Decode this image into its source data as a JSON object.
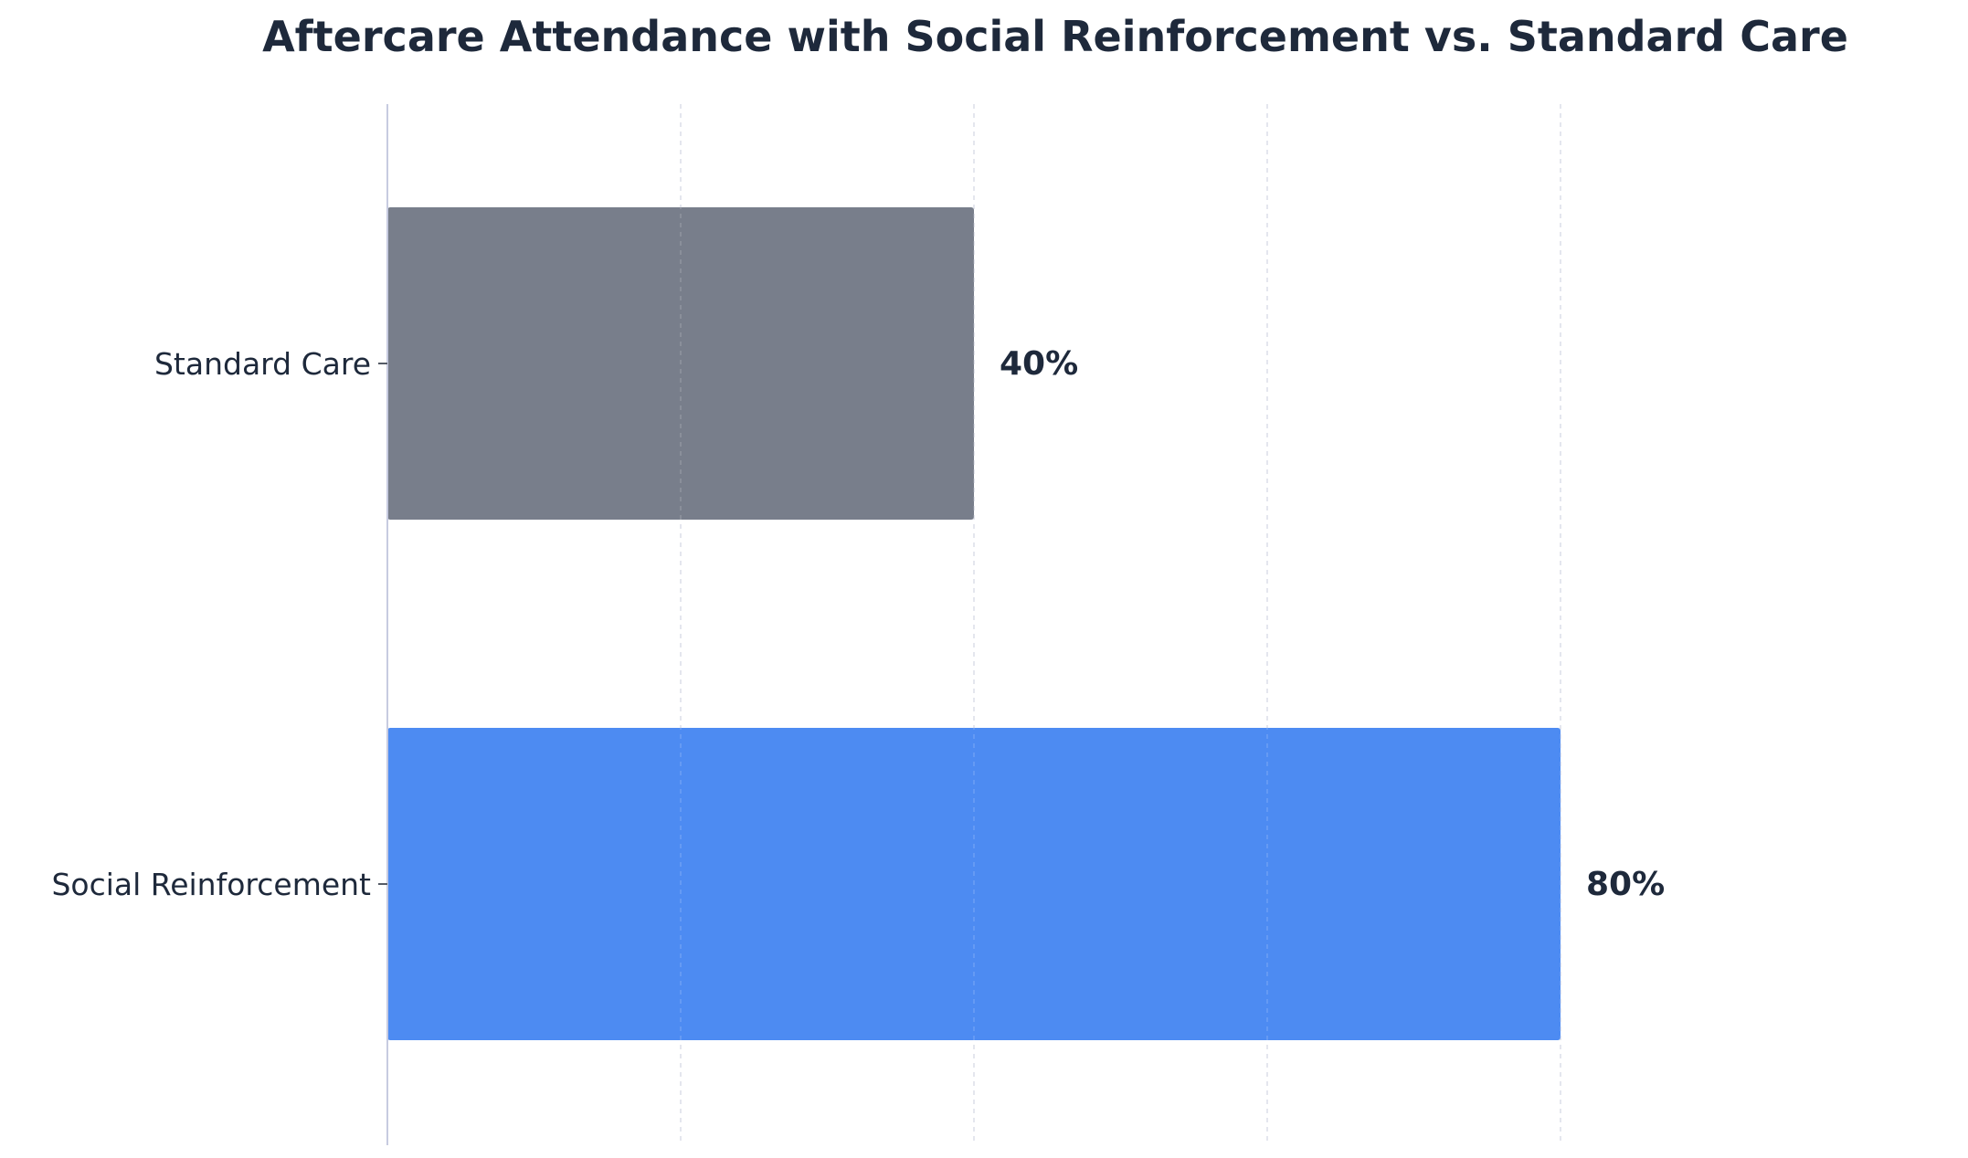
{
  "chart_data": {
    "type": "bar",
    "orientation": "horizontal",
    "title": "Aftercare Attendance with Social Reinforcement vs. Standard Care",
    "xlabel": "",
    "ylabel": "",
    "categories": [
      "Standard Care",
      "Social Reinforcement"
    ],
    "values": [
      40,
      80
    ],
    "value_labels": [
      "40%",
      "80%"
    ],
    "xlim": [
      0,
      85
    ],
    "grid": "vertical dashed",
    "colors": {
      "Standard Care": "#787e8b",
      "Social Reinforcement": "#4d8bf2",
      "text": "#1e293b",
      "axis": "#c7cbe0",
      "grid": "#d6dae4"
    }
  }
}
